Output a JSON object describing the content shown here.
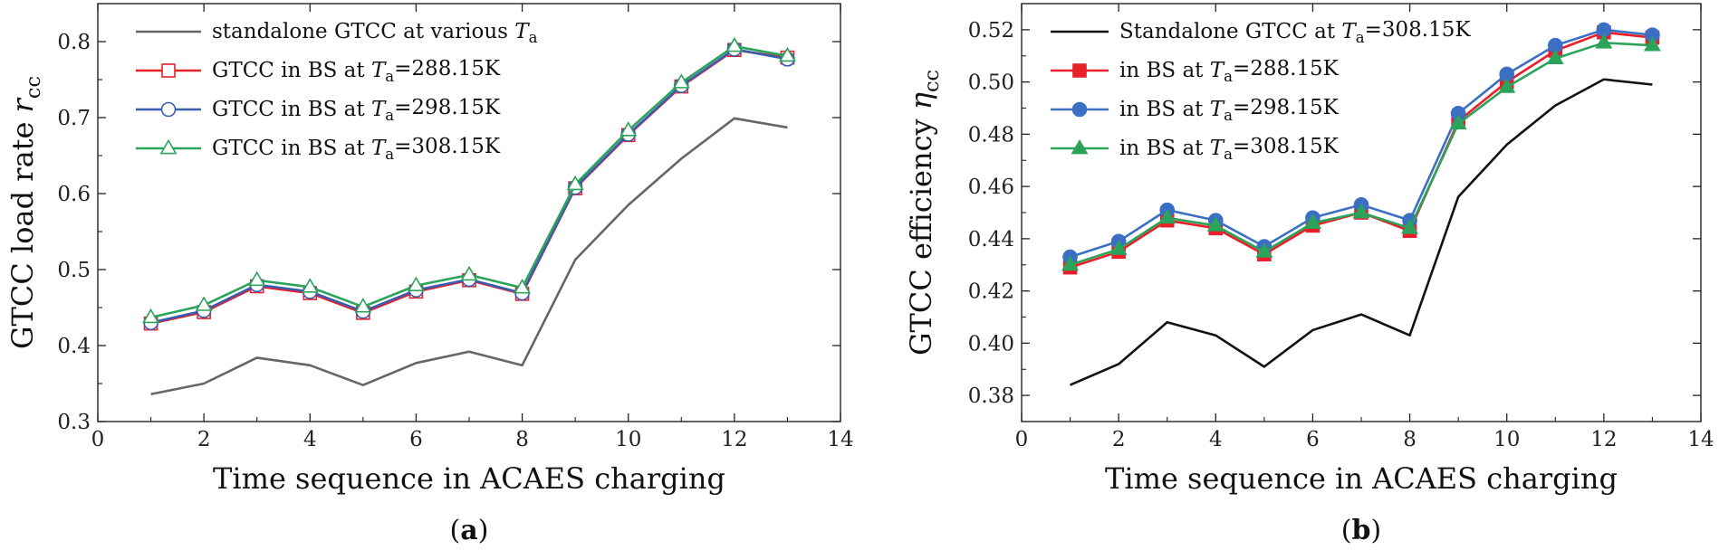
{
  "chart_data": [
    {
      "type": "line",
      "panel": "(a)",
      "panel_prefix": "(",
      "panel_letter": "a",
      "panel_suffix": ")",
      "xlabel": "Time sequence in ACAES charging",
      "ylabel": "GTCC load rate ",
      "ylabel_symbol": "r",
      "ylabel_subscript": "cc",
      "xlim": [
        0,
        14
      ],
      "ylim": [
        0.3,
        0.85
      ],
      "xticks": [
        0,
        2,
        4,
        6,
        8,
        10,
        12,
        14
      ],
      "xtick_labels": [
        "0",
        "2",
        "4",
        "6",
        "8",
        "10",
        "12",
        "14"
      ],
      "yticks": [
        0.3,
        0.4,
        0.5,
        0.6,
        0.7,
        0.8
      ],
      "ytick_labels": [
        "0.3",
        "0.4",
        "0.5",
        "0.6",
        "0.7",
        "0.8"
      ],
      "legend_position": "top-left",
      "x": [
        1,
        2,
        3,
        4,
        5,
        6,
        7,
        8,
        9,
        10,
        11,
        12,
        13
      ],
      "series": [
        {
          "name": "standalone GTCC at various Ta",
          "legend_text": "standalone GTCC at various ",
          "legend_symbol": "T",
          "legend_sub": "a",
          "legend_tail": "",
          "color": "#666666",
          "marker": "none",
          "values": [
            0.336,
            0.35,
            0.384,
            0.374,
            0.348,
            0.377,
            0.392,
            0.374,
            0.513,
            0.585,
            0.646,
            0.699,
            0.687
          ]
        },
        {
          "name": "GTCC in BS at Ta=288.15K",
          "legend_text": "GTCC in BS at ",
          "legend_symbol": "T",
          "legend_sub": "a",
          "legend_tail": "=288.15K",
          "color": "#e8202a",
          "marker": "square-open",
          "values": [
            0.429,
            0.444,
            0.478,
            0.469,
            0.443,
            0.471,
            0.486,
            0.468,
            0.607,
            0.677,
            0.741,
            0.789,
            0.779
          ]
        },
        {
          "name": "GTCC in BS at Ta=298.15K",
          "legend_text": "GTCC in BS at ",
          "legend_symbol": "T",
          "legend_sub": "a",
          "legend_tail": "=298.15K",
          "color": "#3a5cb0",
          "marker": "circle-open",
          "values": [
            0.43,
            0.446,
            0.48,
            0.471,
            0.445,
            0.473,
            0.487,
            0.469,
            0.608,
            0.678,
            0.742,
            0.79,
            0.777
          ]
        },
        {
          "name": "GTCC in BS at Ta=308.15K",
          "legend_text": "GTCC in BS at ",
          "legend_symbol": "T",
          "legend_sub": "a",
          "legend_tail": "=308.15K",
          "color": "#2ca35a",
          "marker": "triangle-open",
          "values": [
            0.437,
            0.453,
            0.486,
            0.477,
            0.451,
            0.479,
            0.493,
            0.476,
            0.612,
            0.683,
            0.746,
            0.794,
            0.781
          ]
        }
      ]
    },
    {
      "type": "line",
      "panel": "(b)",
      "panel_prefix": "(",
      "panel_letter": "b",
      "panel_suffix": ")",
      "xlabel": "Time sequence in ACAES charging",
      "ylabel": "GTCC efficiency ",
      "ylabel_symbol": "η",
      "ylabel_subscript": "cc",
      "xlim": [
        0,
        14
      ],
      "ylim": [
        0.37,
        0.53
      ],
      "xticks": [
        0,
        2,
        4,
        6,
        8,
        10,
        12,
        14
      ],
      "xtick_labels": [
        "0",
        "2",
        "4",
        "6",
        "8",
        "10",
        "12",
        "14"
      ],
      "yticks": [
        0.38,
        0.4,
        0.42,
        0.44,
        0.46,
        0.48,
        0.5,
        0.52
      ],
      "ytick_labels": [
        "0.38",
        "0.40",
        "0.42",
        "0.44",
        "0.46",
        "0.48",
        "0.50",
        "0.52"
      ],
      "legend_position": "top-left",
      "x": [
        1,
        2,
        3,
        4,
        5,
        6,
        7,
        8,
        9,
        10,
        11,
        12,
        13
      ],
      "series": [
        {
          "name": "Standalone GTCC at Ta=308.15K",
          "legend_text": "Standalone GTCC at ",
          "legend_symbol": "T",
          "legend_sub": "a",
          "legend_tail": "=308.15K",
          "color": "#111111",
          "marker": "none",
          "values": [
            0.384,
            0.392,
            0.408,
            0.403,
            0.391,
            0.405,
            0.411,
            0.403,
            0.456,
            0.476,
            0.491,
            0.501,
            0.499
          ]
        },
        {
          "name": "in BS at Ta=288.15K",
          "legend_text": "in BS at ",
          "legend_symbol": "T",
          "legend_sub": "a",
          "legend_tail": "=288.15K",
          "color": "#e8202a",
          "marker": "square-filled",
          "values": [
            0.429,
            0.435,
            0.447,
            0.444,
            0.434,
            0.445,
            0.45,
            0.443,
            0.485,
            0.5,
            0.512,
            0.519,
            0.517
          ]
        },
        {
          "name": "in BS at Ta=298.15K",
          "legend_text": "in BS at ",
          "legend_symbol": "T",
          "legend_sub": "a",
          "legend_tail": "=298.15K",
          "color": "#3a6fc4",
          "marker": "circle-filled",
          "values": [
            0.433,
            0.439,
            0.451,
            0.447,
            0.437,
            0.448,
            0.453,
            0.447,
            0.488,
            0.503,
            0.514,
            0.52,
            0.518
          ]
        },
        {
          "name": "in BS at Ta=308.15K",
          "legend_text": "in BS at ",
          "legend_symbol": "T",
          "legend_sub": "a",
          "legend_tail": "=308.15K",
          "color": "#2ca35a",
          "marker": "triangle-filled",
          "values": [
            0.43,
            0.436,
            0.448,
            0.445,
            0.435,
            0.446,
            0.45,
            0.444,
            0.484,
            0.498,
            0.509,
            0.515,
            0.514
          ]
        }
      ]
    }
  ]
}
